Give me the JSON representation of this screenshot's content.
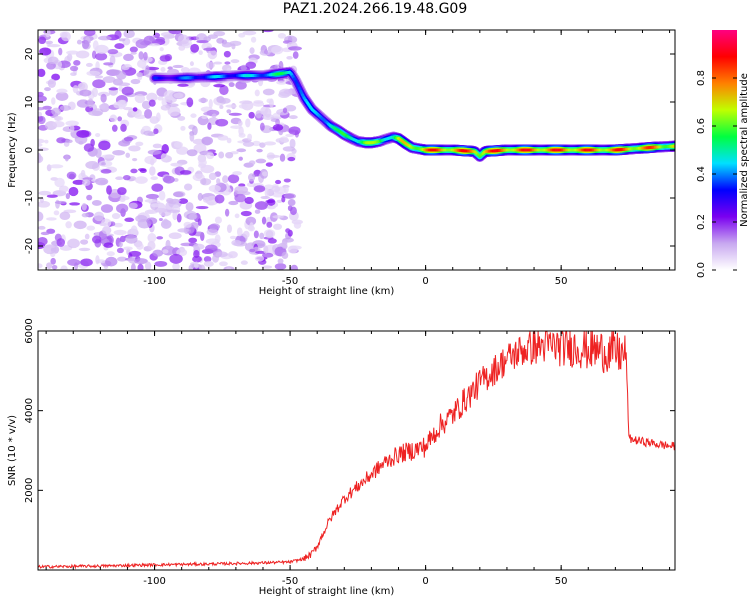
{
  "title": "PAZ1.2024.266.19.48.G09",
  "chart_data": [
    {
      "type": "heatmap",
      "xlabel": "Height of straight line (km)",
      "ylabel": "Frequency (Hz)",
      "xlim": [
        -143,
        92
      ],
      "ylim": [
        -25,
        25
      ],
      "xticks": [
        -100,
        -50,
        0,
        50
      ],
      "yticks": [
        -20,
        -10,
        0,
        10,
        20
      ],
      "colorbar": {
        "label": "Normalized spectral amplitude",
        "range": [
          0,
          1
        ],
        "ticks": [
          "0.0",
          "0.2",
          "0.4",
          "0.6",
          "0.8"
        ],
        "colormap": [
          "#ffffff",
          "#c8a8f0",
          "#7a00f0",
          "#0000ff",
          "#00e0ff",
          "#00ff40",
          "#c0ff00",
          "#ff8000",
          "#ff0000",
          "#ff0080"
        ]
      },
      "ridge": {
        "x": [
          -100,
          -90,
          -80,
          -70,
          -60,
          -55,
          -50,
          -48,
          -45,
          -42,
          -40,
          -37,
          -35,
          -32,
          -30,
          -27,
          -25,
          -22,
          -20,
          -17,
          -15,
          -12,
          -10,
          -7,
          -5,
          -2,
          0,
          10,
          18,
          20,
          22,
          30,
          50,
          70,
          85,
          92
        ],
        "y": [
          15,
          15,
          15.2,
          15.5,
          15.5,
          15.8,
          16.2,
          14.5,
          11,
          8.5,
          7.5,
          6,
          5,
          4,
          3.2,
          2.3,
          1.8,
          1.5,
          1.5,
          1.8,
          2.2,
          2.7,
          2.4,
          1.2,
          0.5,
          0.2,
          0,
          0,
          -0.3,
          -1.3,
          -0.3,
          0,
          0,
          0,
          0.6,
          0.8
        ],
        "amplitude": [
          0.35,
          0.4,
          0.45,
          0.45,
          0.5,
          0.55,
          0.6,
          0.5,
          0.45,
          0.45,
          0.5,
          0.55,
          0.6,
          0.55,
          0.6,
          0.65,
          0.65,
          0.7,
          0.65,
          0.7,
          0.65,
          0.6,
          0.7,
          0.75,
          0.8,
          0.85,
          0.9,
          0.9,
          0.9,
          0.85,
          0.9,
          0.92,
          0.92,
          0.9,
          0.85,
          0.8
        ]
      }
    },
    {
      "type": "line",
      "xlabel": "Height of straight line (km)",
      "ylabel": "SNR (10 * v/v)",
      "xlim": [
        -143,
        92
      ],
      "ylim": [
        0,
        6000
      ],
      "xticks": [
        -100,
        -50,
        0,
        50
      ],
      "yticks": [
        2000,
        4000,
        6000
      ],
      "series": [
        {
          "color": "#ee2222",
          "x": [
            -143,
            -120,
            -100,
            -80,
            -60,
            -50,
            -45,
            -42,
            -40,
            -38,
            -35,
            -32,
            -30,
            -25,
            -20,
            -15,
            -10,
            -5,
            0,
            5,
            10,
            15,
            20,
            25,
            30,
            35,
            40,
            45,
            50,
            55,
            60,
            65,
            70,
            74,
            75,
            78,
            82,
            86,
            92
          ],
          "y": [
            80,
            100,
            130,
            150,
            180,
            200,
            280,
            400,
            600,
            900,
            1300,
            1600,
            1800,
            2100,
            2400,
            2700,
            2900,
            3000,
            3100,
            3600,
            3900,
            4300,
            4700,
            5000,
            5300,
            5500,
            5600,
            5650,
            5600,
            5600,
            5550,
            5500,
            5450,
            5400,
            3300,
            3250,
            3200,
            3150,
            3100
          ]
        }
      ]
    }
  ]
}
